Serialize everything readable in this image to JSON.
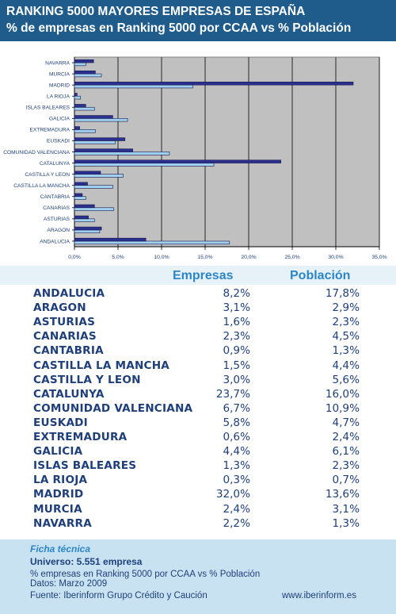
{
  "header": {
    "title": "RANKING 5000 MAYORES EMPRESAS DE ESPAÑA",
    "subtitle": "% de empresas en Ranking 5000 por CCAA vs % Población"
  },
  "colors": {
    "header_bg": "#1f5c8c",
    "empresas_bar": "#2b2f8f",
    "poblacion_bar": "#9fd0f0",
    "plot_bg": "#c0c0c0",
    "footer_bg": "#c9e2f2",
    "table_text": "#1e3f7a",
    "column_header_text": "#2c86c8"
  },
  "chart_data": {
    "type": "bar",
    "orientation": "horizontal",
    "categories": [
      "ANDALUCIA",
      "ARAGON",
      "ASTURIAS",
      "CANARIAS",
      "CANTABRIA",
      "CASTILLA LA MANCHA",
      "CASTILLA Y LEON",
      "CATALUNYA",
      "COMUNIDAD VALENCIANA",
      "EUSKADI",
      "EXTREMADURA",
      "GALICIA",
      "ISLAS BALEARES",
      "LA RIOJA",
      "MADRID",
      "MURCIA",
      "NAVARRA"
    ],
    "category_labels": [
      "ANDALUCIA",
      "ARAGON",
      "ASTURIAS",
      "CANARIAS",
      "CANTABRIA",
      "CASTILLA LA MANCHA",
      "CASTILLA Y LEON",
      "CATALUNYA",
      "COMUNIDAD VALENCIANA",
      "EUSKADI",
      "EXTREMADURA",
      "GALICIA",
      "ISLAS BALEARES",
      "LA RIOJA",
      "MADRID",
      "MURCIA",
      "NAVARRA"
    ],
    "series": [
      {
        "name": "Empresas",
        "values": [
          8.2,
          3.1,
          1.6,
          2.3,
          0.9,
          1.5,
          3.0,
          23.7,
          6.7,
          5.8,
          0.6,
          4.4,
          1.3,
          0.3,
          32.0,
          2.4,
          2.2
        ]
      },
      {
        "name": "Población",
        "values": [
          17.8,
          2.9,
          2.3,
          4.5,
          1.3,
          4.4,
          5.6,
          16.0,
          10.9,
          4.7,
          2.4,
          6.1,
          2.3,
          0.7,
          13.6,
          3.1,
          1.3
        ]
      }
    ],
    "xlim": [
      0,
      35
    ],
    "xticks": [
      0,
      5,
      10,
      15,
      20,
      25,
      30,
      35
    ],
    "xtick_labels": [
      "0,0%",
      "5,0%",
      "10,0%",
      "15,0%",
      "20,0%",
      "25,0%",
      "30,0%",
      "35,0%"
    ],
    "grid": true,
    "legend": "none"
  },
  "table": {
    "headers": {
      "empresas": "Empresas",
      "poblacion": "Población"
    },
    "rows": [
      {
        "name": "ANDALUCIA",
        "empresas": "8,2%",
        "poblacion": "17,8%"
      },
      {
        "name": "ARAGON",
        "empresas": "3,1%",
        "poblacion": "2,9%"
      },
      {
        "name": "ASTURIAS",
        "empresas": "1,6%",
        "poblacion": "2,3%"
      },
      {
        "name": "CANARIAS",
        "empresas": "2,3%",
        "poblacion": "4,5%"
      },
      {
        "name": "CANTABRIA",
        "empresas": "0,9%",
        "poblacion": "1,3%"
      },
      {
        "name": "CASTILLA LA MANCHA",
        "empresas": "1,5%",
        "poblacion": "4,4%"
      },
      {
        "name": "CASTILLA Y LEON",
        "empresas": "3,0%",
        "poblacion": "5,6%"
      },
      {
        "name": "CATALUNYA",
        "empresas": "23,7%",
        "poblacion": "16,0%"
      },
      {
        "name": "COMUNIDAD VALENCIANA",
        "empresas": "6,7%",
        "poblacion": "10,9%"
      },
      {
        "name": "EUSKADI",
        "empresas": "5,8%",
        "poblacion": "4,7%"
      },
      {
        "name": "EXTREMADURA",
        "empresas": "0,6%",
        "poblacion": "2,4%"
      },
      {
        "name": "GALICIA",
        "empresas": "4,4%",
        "poblacion": "6,1%"
      },
      {
        "name": "ISLAS BALEARES",
        "empresas": "1,3%",
        "poblacion": "2,3%"
      },
      {
        "name": "LA RIOJA",
        "empresas": "0,3%",
        "poblacion": "0,7%"
      },
      {
        "name": "MADRID",
        "empresas": "32,0%",
        "poblacion": "13,6%"
      },
      {
        "name": "MURCIA",
        "empresas": "2,4%",
        "poblacion": "3,1%"
      },
      {
        "name": "NAVARRA",
        "empresas": "2,2%",
        "poblacion": "1,3%"
      }
    ]
  },
  "footer": {
    "label": "Ficha técnica",
    "universe": "Universo: 5.551 empresa",
    "description": "% empresas en Ranking 5000 por CCAA vs % Población",
    "date": "Datos: Marzo 2009",
    "source": "Fuente: Iberinform Grupo Crédito y Caución",
    "website": "www.iberinform.es"
  }
}
